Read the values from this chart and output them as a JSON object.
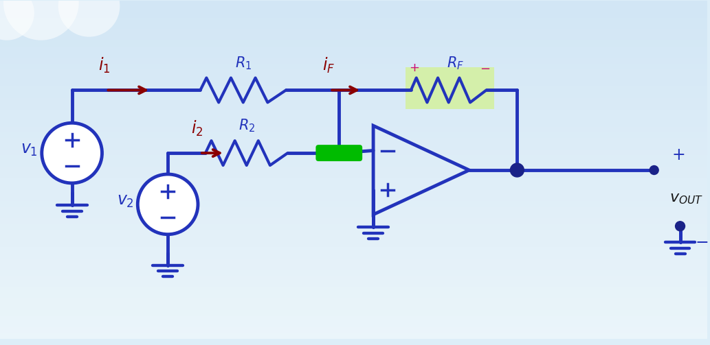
{
  "circuit_color": "#2233bb",
  "wire_lw": 3.5,
  "arrow_color": "#8b0000",
  "current_label_color": "#8b0000",
  "rf_bg_color": "#d4f0a0",
  "vout_color": "#1a1a1a",
  "label_color_blue": "#2233bb",
  "plus_minus_rf_color": "#cc1177",
  "green_node_color": "#00bb00",
  "output_dot_color": "#1a2288",
  "bg_top": "#ddeef8",
  "bg_bottom": "#c8e0f0"
}
